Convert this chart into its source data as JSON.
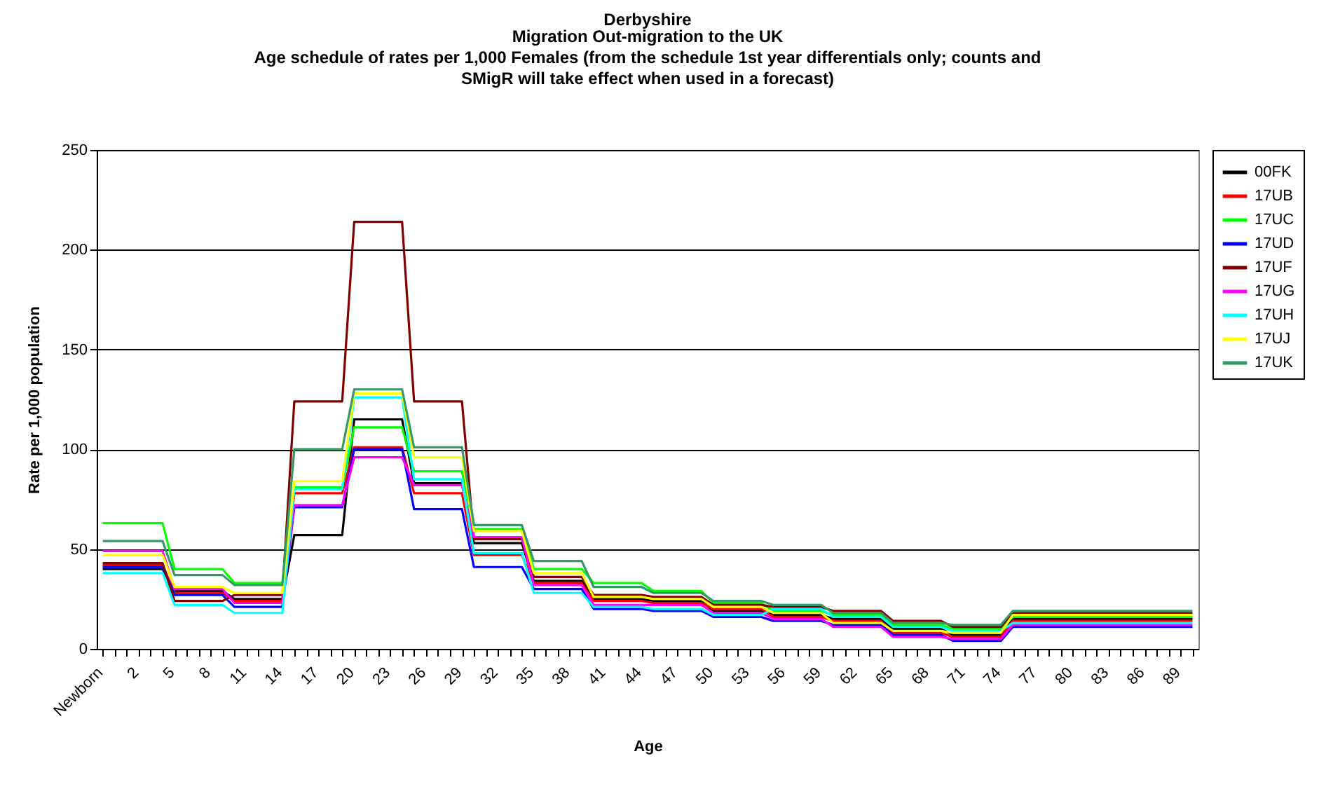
{
  "chart_data": {
    "type": "line",
    "title": "Derbyshire",
    "subtitle": "Migration   Out-migration to the UK\nAge schedule of rates per 1,000 Females (from the schedule 1st year differentials only; counts and SMigR will take effect when used in a forecast)",
    "xlabel": "Age",
    "ylabel": "Rate per 1,000 population",
    "categories": [
      "Newborn",
      null,
      null,
      "2",
      null,
      null,
      "5",
      null,
      null,
      "8",
      null,
      null,
      "11",
      null,
      null,
      "14",
      null,
      null,
      "17",
      null,
      null,
      "20",
      null,
      null,
      "23",
      null,
      null,
      "26",
      null,
      null,
      "29",
      null,
      null,
      "32",
      null,
      null,
      "35",
      null,
      null,
      "38",
      null,
      null,
      "41",
      null,
      null,
      "44",
      null,
      null,
      "47",
      null,
      null,
      "50",
      null,
      null,
      "53",
      null,
      null,
      "56",
      null,
      null,
      "59",
      null,
      null,
      "62",
      null,
      null,
      "65",
      null,
      null,
      "68",
      null,
      null,
      "71",
      null,
      null,
      "74",
      null,
      null,
      "77",
      null,
      null,
      "80",
      null,
      null,
      "83",
      null,
      null,
      "86",
      null,
      null,
      "89",
      null
    ],
    "ylim": [
      0,
      250
    ],
    "yticks": [
      0,
      50,
      100,
      150,
      200,
      250
    ],
    "grid": "y",
    "legend": "right",
    "line_style": "solid",
    "series": [
      {
        "name": "00FK",
        "color": "#000000",
        "values": [
          40,
          40,
          40,
          40,
          40,
          40,
          29,
          29,
          29,
          29,
          29,
          25,
          25,
          25,
          25,
          25,
          57,
          57,
          57,
          57,
          57,
          115,
          115,
          115,
          115,
          115,
          83,
          83,
          83,
          83,
          83,
          53,
          53,
          53,
          53,
          53,
          34,
          34,
          34,
          34,
          34,
          25,
          25,
          25,
          25,
          25,
          24,
          24,
          24,
          24,
          24,
          19,
          19,
          19,
          19,
          19,
          17,
          17,
          17,
          17,
          17,
          15,
          15,
          15,
          15,
          15,
          10,
          10,
          10,
          10,
          10,
          7,
          7,
          7,
          7,
          7,
          15,
          15,
          15,
          15,
          15,
          15,
          15,
          15,
          15,
          15,
          15,
          15,
          15,
          15,
          15,
          15
        ]
      },
      {
        "name": "17UB",
        "color": "#ff0000",
        "values": [
          42,
          42,
          42,
          42,
          42,
          42,
          28,
          28,
          28,
          28,
          28,
          24,
          24,
          24,
          24,
          24,
          78,
          78,
          78,
          78,
          78,
          101,
          101,
          101,
          101,
          101,
          78,
          78,
          78,
          78,
          78,
          47,
          47,
          47,
          47,
          47,
          33,
          33,
          33,
          33,
          33,
          24,
          24,
          24,
          24,
          24,
          23,
          23,
          23,
          23,
          23,
          20,
          20,
          20,
          20,
          20,
          16,
          16,
          16,
          16,
          16,
          14,
          14,
          14,
          14,
          14,
          8,
          8,
          8,
          8,
          8,
          6,
          6,
          6,
          6,
          6,
          14,
          14,
          14,
          14,
          14,
          14,
          14,
          14,
          14,
          14,
          14,
          14,
          14,
          14,
          14,
          14
        ]
      },
      {
        "name": "17UC",
        "color": "#00ff00",
        "values": [
          63,
          63,
          63,
          63,
          63,
          63,
          40,
          40,
          40,
          40,
          40,
          33,
          33,
          33,
          33,
          33,
          81,
          81,
          81,
          81,
          81,
          111,
          111,
          111,
          111,
          111,
          89,
          89,
          89,
          89,
          89,
          60,
          60,
          60,
          60,
          60,
          40,
          40,
          40,
          40,
          40,
          33,
          33,
          33,
          33,
          33,
          29,
          29,
          29,
          29,
          29,
          23,
          23,
          23,
          23,
          23,
          19,
          19,
          19,
          19,
          19,
          17,
          17,
          17,
          17,
          17,
          12,
          12,
          12,
          12,
          12,
          10,
          10,
          10,
          10,
          10,
          16,
          16,
          16,
          16,
          16,
          16,
          16,
          16,
          16,
          16,
          16,
          16,
          16,
          16,
          16,
          16
        ]
      },
      {
        "name": "17UD",
        "color": "#0000ff",
        "values": [
          41,
          41,
          41,
          41,
          41,
          41,
          27,
          27,
          27,
          27,
          27,
          21,
          21,
          21,
          21,
          21,
          71,
          71,
          71,
          71,
          71,
          100,
          100,
          100,
          100,
          100,
          70,
          70,
          70,
          70,
          70,
          41,
          41,
          41,
          41,
          41,
          30,
          30,
          30,
          30,
          30,
          20,
          20,
          20,
          20,
          20,
          19,
          19,
          19,
          19,
          19,
          16,
          16,
          16,
          16,
          16,
          14,
          14,
          14,
          14,
          14,
          12,
          12,
          12,
          12,
          12,
          7,
          7,
          7,
          7,
          7,
          4,
          4,
          4,
          4,
          4,
          11,
          11,
          11,
          11,
          11,
          11,
          11,
          11,
          11,
          11,
          11,
          11,
          11,
          11,
          11,
          11
        ]
      },
      {
        "name": "17UF",
        "color": "#800000",
        "values": [
          43,
          43,
          43,
          43,
          43,
          43,
          24,
          24,
          24,
          24,
          24,
          27,
          27,
          27,
          27,
          27,
          124,
          124,
          124,
          124,
          124,
          214,
          214,
          214,
          214,
          214,
          124,
          124,
          124,
          124,
          124,
          55,
          55,
          55,
          55,
          55,
          36,
          36,
          36,
          36,
          36,
          27,
          27,
          27,
          27,
          27,
          26,
          26,
          26,
          26,
          26,
          22,
          22,
          22,
          22,
          22,
          21,
          21,
          21,
          21,
          21,
          19,
          19,
          19,
          19,
          19,
          14,
          14,
          14,
          14,
          14,
          11,
          11,
          11,
          11,
          11,
          18,
          18,
          18,
          18,
          18,
          18,
          18,
          18,
          18,
          18,
          18,
          18,
          18,
          18,
          18,
          18
        ]
      },
      {
        "name": "17UG",
        "color": "#ff00ff",
        "values": [
          49,
          49,
          49,
          49,
          49,
          49,
          30,
          30,
          30,
          30,
          30,
          23,
          23,
          23,
          23,
          23,
          72,
          72,
          72,
          72,
          72,
          96,
          96,
          96,
          96,
          96,
          82,
          82,
          82,
          82,
          82,
          56,
          56,
          56,
          56,
          56,
          32,
          32,
          32,
          32,
          32,
          22,
          22,
          22,
          22,
          22,
          22,
          22,
          22,
          22,
          22,
          18,
          18,
          18,
          18,
          18,
          15,
          15,
          15,
          15,
          15,
          11,
          11,
          11,
          11,
          11,
          6,
          6,
          6,
          6,
          6,
          5,
          5,
          5,
          5,
          5,
          12,
          12,
          12,
          12,
          12,
          12,
          12,
          12,
          12,
          12,
          12,
          12,
          12,
          12,
          12,
          12
        ]
      },
      {
        "name": "17UH",
        "color": "#00ffff",
        "values": [
          38,
          38,
          38,
          38,
          38,
          38,
          22,
          22,
          22,
          22,
          22,
          18,
          18,
          18,
          18,
          18,
          80,
          80,
          80,
          80,
          80,
          126,
          126,
          126,
          126,
          126,
          85,
          85,
          85,
          85,
          85,
          48,
          48,
          48,
          48,
          48,
          28,
          28,
          28,
          28,
          28,
          21,
          21,
          21,
          21,
          21,
          20,
          20,
          20,
          20,
          20,
          17,
          17,
          17,
          17,
          17,
          20,
          20,
          20,
          20,
          20,
          16,
          16,
          16,
          16,
          16,
          11,
          11,
          11,
          11,
          11,
          9,
          9,
          9,
          9,
          9,
          13,
          13,
          13,
          13,
          13,
          13,
          13,
          13,
          13,
          13,
          13,
          13,
          13,
          13,
          13,
          13
        ]
      },
      {
        "name": "17UJ",
        "color": "#ffff00",
        "values": [
          47,
          47,
          47,
          47,
          47,
          47,
          31,
          31,
          31,
          31,
          31,
          28,
          28,
          28,
          28,
          28,
          84,
          84,
          84,
          84,
          84,
          128,
          128,
          128,
          128,
          128,
          96,
          96,
          96,
          96,
          96,
          59,
          59,
          59,
          59,
          59,
          38,
          38,
          38,
          38,
          38,
          26,
          26,
          26,
          26,
          26,
          25,
          25,
          25,
          25,
          25,
          21,
          21,
          21,
          21,
          21,
          18,
          18,
          18,
          18,
          18,
          13,
          13,
          13,
          13,
          13,
          9,
          9,
          9,
          9,
          9,
          8,
          8,
          8,
          8,
          8,
          17,
          17,
          17,
          17,
          17,
          17,
          17,
          17,
          17,
          17,
          17,
          17,
          17,
          17,
          17,
          17
        ]
      },
      {
        "name": "17UK",
        "color": "#339966",
        "values": [
          54,
          54,
          54,
          54,
          54,
          54,
          37,
          37,
          37,
          37,
          37,
          32,
          32,
          32,
          32,
          32,
          100,
          100,
          100,
          100,
          100,
          130,
          130,
          130,
          130,
          130,
          101,
          101,
          101,
          101,
          101,
          62,
          62,
          62,
          62,
          62,
          44,
          44,
          44,
          44,
          44,
          31,
          31,
          31,
          31,
          31,
          28,
          28,
          28,
          28,
          28,
          24,
          24,
          24,
          24,
          24,
          22,
          22,
          22,
          22,
          22,
          18,
          18,
          18,
          18,
          18,
          13,
          13,
          13,
          13,
          13,
          12,
          12,
          12,
          12,
          12,
          19,
          19,
          19,
          19,
          19,
          19,
          19,
          19,
          19,
          19,
          19,
          19,
          19,
          19,
          19,
          19
        ]
      }
    ]
  }
}
